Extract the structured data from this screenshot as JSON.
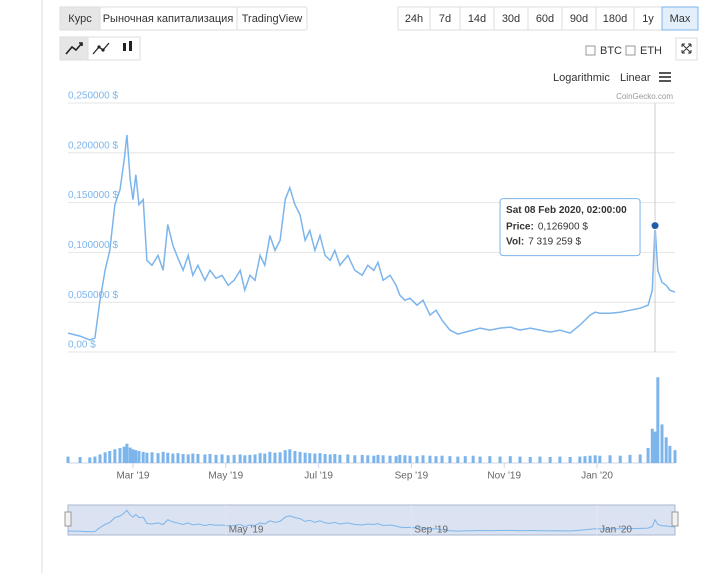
{
  "ui": {
    "tabs": [
      "Курс",
      "Рыночная капитализация",
      "TradingView"
    ],
    "ranges": [
      "24h",
      "7d",
      "14d",
      "30d",
      "60d",
      "90d",
      "180d",
      "1y",
      "Max"
    ],
    "compare": [
      "BTC",
      "ETH"
    ],
    "scales": [
      "Logarithmic",
      "Linear"
    ],
    "credit": "CoinGecko.com"
  },
  "chart_data": {
    "type": "line",
    "log_scale": false,
    "grid": true,
    "annotation": "Sat 08 Feb 2020, 02:00:00",
    "x": [
      0.6,
      0.86,
      1.07,
      1.18,
      1.29,
      1.4,
      1.5,
      1.61,
      1.72,
      1.81,
      1.87,
      1.94,
      2.0,
      2.06,
      2.13,
      2.22,
      2.3,
      2.41,
      2.54,
      2.65,
      2.75,
      2.86,
      2.97,
      3.08,
      3.19,
      3.29,
      3.4,
      3.55,
      3.66,
      3.79,
      3.92,
      4.05,
      4.18,
      4.31,
      4.41,
      4.52,
      4.63,
      4.74,
      4.84,
      4.95,
      5.06,
      5.17,
      5.28,
      5.38,
      5.49,
      5.6,
      5.71,
      5.81,
      5.92,
      6.03,
      6.14,
      6.25,
      6.35,
      6.46,
      6.63,
      6.78,
      6.94,
      7.06,
      7.19,
      7.28,
      7.39,
      7.54,
      7.67,
      7.75,
      7.86,
      7.97,
      8.12,
      8.25,
      8.4,
      8.53,
      8.66,
      8.83,
      9.0,
      9.16,
      9.33,
      9.48,
      9.69,
      9.91,
      10.13,
      10.34,
      10.56,
      10.77,
      10.99,
      11.2,
      11.42,
      11.63,
      11.74,
      11.85,
      11.96,
      12.06,
      12.28,
      12.5,
      12.71,
      12.93,
      13.1,
      13.19,
      13.25,
      13.31,
      13.4,
      13.49,
      13.57,
      13.68
    ],
    "xlim": [
      0.6,
      13.68
    ],
    "xticks": [
      {
        "value": 2,
        "label": "Mar '19"
      },
      {
        "value": 4,
        "label": "May '19"
      },
      {
        "value": 6,
        "label": "Jul '19"
      },
      {
        "value": 8,
        "label": "Sep '19"
      },
      {
        "value": 10,
        "label": "Nov '19"
      },
      {
        "value": 12,
        "label": "Jan '20"
      }
    ],
    "ylim": [
      0,
      0.25
    ],
    "yticks": [
      {
        "value": 0,
        "label": "0,00 $"
      },
      {
        "value": 0.05,
        "label": "0,050000 $"
      },
      {
        "value": 0.1,
        "label": "0,100000 $"
      },
      {
        "value": 0.15,
        "label": "0,150000 $"
      },
      {
        "value": 0.2,
        "label": "0,200000 $"
      },
      {
        "value": 0.25,
        "label": "0,250000 $"
      }
    ],
    "y2lim": [
      0,
      21000000
    ],
    "series": [
      {
        "name": "Price:",
        "color": "#7cb5ec",
        "values": [
          0.019,
          0.016,
          0.012,
          0.014,
          0.052,
          0.082,
          0.102,
          0.148,
          0.163,
          0.193,
          0.218,
          0.173,
          0.153,
          0.178,
          0.148,
          0.153,
          0.092,
          0.087,
          0.097,
          0.082,
          0.128,
          0.107,
          0.094,
          0.082,
          0.097,
          0.077,
          0.087,
          0.072,
          0.082,
          0.074,
          0.077,
          0.067,
          0.072,
          0.082,
          0.062,
          0.077,
          0.072,
          0.097,
          0.087,
          0.117,
          0.102,
          0.112,
          0.153,
          0.165,
          0.148,
          0.138,
          0.112,
          0.122,
          0.102,
          0.117,
          0.097,
          0.092,
          0.102,
          0.087,
          0.097,
          0.082,
          0.077,
          0.087,
          0.082,
          0.09,
          0.072,
          0.077,
          0.067,
          0.057,
          0.052,
          0.054,
          0.047,
          0.052,
          0.037,
          0.042,
          0.032,
          0.022,
          0.018,
          0.02,
          0.022,
          0.024,
          0.022,
          0.024,
          0.025,
          0.022,
          0.024,
          0.022,
          0.02,
          0.022,
          0.019,
          0.027,
          0.032,
          0.037,
          0.04,
          0.039,
          0.039,
          0.04,
          0.042,
          0.044,
          0.047,
          0.062,
          0.1269,
          0.082,
          0.07,
          0.067,
          0.062,
          0.06
        ],
        "value_labels": [
          null,
          null,
          null,
          null,
          null,
          null,
          null,
          null,
          null,
          null,
          null,
          null,
          null,
          null,
          null,
          null,
          null,
          null,
          null,
          null,
          null,
          null,
          null,
          null,
          null,
          null,
          null,
          null,
          null,
          null,
          null,
          null,
          null,
          null,
          null,
          null,
          null,
          null,
          null,
          null,
          null,
          null,
          null,
          null,
          null,
          null,
          null,
          null,
          null,
          null,
          null,
          null,
          null,
          null,
          null,
          null,
          null,
          null,
          null,
          null,
          null,
          null,
          null,
          null,
          null,
          null,
          null,
          null,
          null,
          null,
          null,
          null,
          null,
          null,
          null,
          null,
          null,
          null,
          null,
          null,
          null,
          null,
          null,
          null,
          null,
          null,
          null,
          null,
          null,
          null,
          null,
          null,
          null,
          null,
          null,
          null,
          "0,126900 $",
          null,
          null,
          null,
          null,
          null
        ]
      },
      {
        "name": "Vol:",
        "color": "#7cb5ec",
        "axis": "y2",
        "values": [
          1500000,
          1400000,
          1300000,
          1500000,
          2000000,
          2500000,
          2800000,
          3200000,
          3500000,
          3800000,
          4500000,
          3600000,
          3200000,
          3000000,
          2800000,
          2600000,
          2400000,
          2500000,
          2300000,
          2600000,
          2400000,
          2200000,
          2300000,
          2100000,
          2000000,
          2200000,
          2100000,
          2000000,
          2100000,
          1900000,
          2000000,
          1800000,
          1900000,
          2000000,
          1800000,
          1900000,
          2000000,
          2300000,
          2200000,
          2600000,
          2400000,
          2500000,
          3000000,
          3200000,
          2800000,
          2600000,
          2400000,
          2300000,
          2200000,
          2300000,
          2100000,
          2000000,
          2100000,
          1900000,
          2000000,
          1800000,
          1900000,
          1800000,
          1700000,
          1900000,
          1800000,
          1700000,
          1600000,
          1900000,
          1800000,
          1700000,
          1600000,
          1800000,
          1700000,
          1600000,
          1700000,
          1600000,
          1500000,
          1600000,
          1700000,
          1500000,
          1600000,
          1500000,
          1600000,
          1500000,
          1400000,
          1500000,
          1400000,
          1500000,
          1400000,
          1500000,
          1600000,
          1700000,
          1800000,
          1700000,
          1800000,
          1700000,
          1900000,
          2000000,
          3500000,
          8000000,
          7319259,
          20000000,
          9000000,
          6000000,
          4000000,
          3000000
        ],
        "value_labels": [
          null,
          null,
          null,
          null,
          null,
          null,
          null,
          null,
          null,
          null,
          null,
          null,
          null,
          null,
          null,
          null,
          null,
          null,
          null,
          null,
          null,
          null,
          null,
          null,
          null,
          null,
          null,
          null,
          null,
          null,
          null,
          null,
          null,
          null,
          null,
          null,
          null,
          null,
          null,
          null,
          null,
          null,
          null,
          null,
          null,
          null,
          null,
          null,
          null,
          null,
          null,
          null,
          null,
          null,
          null,
          null,
          null,
          null,
          null,
          null,
          null,
          null,
          null,
          null,
          null,
          null,
          null,
          null,
          null,
          null,
          null,
          null,
          null,
          null,
          null,
          null,
          null,
          null,
          null,
          null,
          null,
          null,
          null,
          null,
          null,
          null,
          null,
          null,
          null,
          null,
          null,
          null,
          null,
          null,
          null,
          null,
          "7 319 259 $",
          null,
          null,
          null,
          null,
          null
        ]
      }
    ]
  }
}
